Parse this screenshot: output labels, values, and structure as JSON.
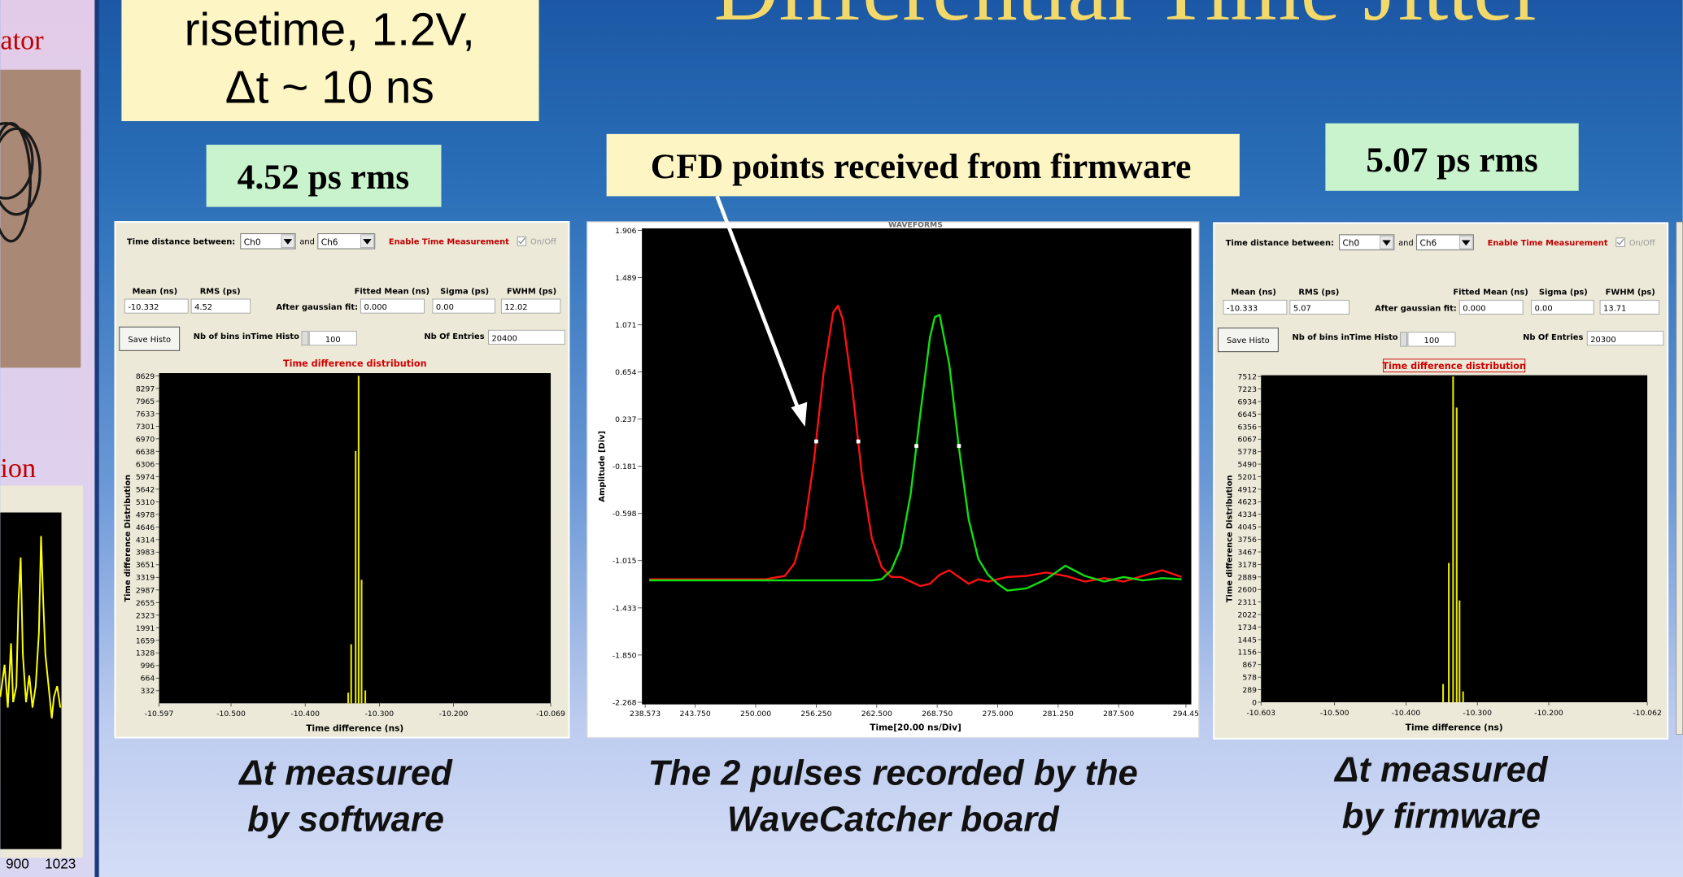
{
  "slide": {
    "title": "Differential Time Jitter",
    "top_box": [
      "risetime, 1.2V,",
      "Δt ~ 10 ns"
    ],
    "left_fragment": {
      "label_top": "ator",
      "label_mid": "ion",
      "xticks": [
        900,
        1023
      ]
    },
    "rms_left": "4.52 ps rms",
    "rms_right": "5.07 ps rms",
    "callout": "CFD points received from firmware",
    "captions": [
      [
        "Δt measured",
        "by software"
      ],
      [
        "The 2 pulses recorded by the",
        "WaveCatcher board"
      ],
      [
        "Δt measured",
        "by firmware"
      ]
    ]
  },
  "panels": [
    {
      "selector_label": "Time distance between:",
      "ch_a": "Ch0",
      "and": "and",
      "ch_b": "Ch6",
      "enable": "Enable Time Measurement",
      "onoff": "On/Off",
      "headers": [
        "Mean (ns)",
        "RMS (ps)",
        "Fitted Mean (ns)",
        "Sigma (ps)",
        "FWHM (ps)"
      ],
      "fit_label": "After gaussian fit:",
      "fields": [
        -10.332,
        4.52,
        "0.000",
        "0.00",
        12.02
      ],
      "save": "Save Histo",
      "bins_label": "Nb of bins inTime Histo",
      "bins": 100,
      "entries_label": "Nb Of Entries",
      "entries": 20400,
      "histogram": {
        "title": "Time difference distribution",
        "ylabel": "Time difference Distribution",
        "xlabel": "Time difference (ns)",
        "xlim": [
          -10.597,
          -10.069
        ],
        "ylim": [
          0,
          8700
        ],
        "xticks": [
          -10.597,
          {
            "value": -10.5,
            "label": "-10.500"
          },
          {
            "value": -10.4,
            "label": "-10.400"
          },
          {
            "value": -10.3,
            "label": "-10.300"
          },
          {
            "value": -10.2,
            "label": "-10.200"
          },
          -10.069
        ],
        "yticks": [
          332,
          664,
          996,
          1328,
          1659,
          1991,
          2323,
          2655,
          2987,
          3319,
          3651,
          3983,
          4314,
          4646,
          4978,
          5310,
          5642,
          5974,
          6306,
          6638,
          6970,
          7301,
          7633,
          7965,
          8297,
          8629
        ],
        "x": [
          -10.342,
          -10.338,
          -10.332,
          -10.328,
          -10.324,
          -10.319
        ],
        "values": [
          280,
          1556,
          6649,
          8629,
          3254,
          340
        ]
      }
    },
    {
      "selector_label": "Time distance between:",
      "ch_a": "Ch0",
      "and": "and",
      "ch_b": "Ch6",
      "enable": "Enable Time Measurement",
      "onoff": "On/Off",
      "headers": [
        "Mean (ns)",
        "RMS (ps)",
        "Fitted Mean (ns)",
        "Sigma (ps)",
        "FWHM (ps)"
      ],
      "fit_label": "After gaussian fit:",
      "fields": [
        -10.333,
        5.07,
        "0.000",
        "0.00",
        13.71
      ],
      "save": "Save Histo",
      "bins_label": "Nb of bins inTime Histo",
      "bins": 100,
      "entries_label": "Nb Of Entries",
      "entries": 20300,
      "histogram": {
        "title": "Time difference distribution",
        "ylabel": "Time difference Distribution",
        "xlabel": "Time difference (ns)",
        "xlim": [
          -10.603,
          -10.062
        ],
        "ylim": [
          0,
          7540
        ],
        "xticks": [
          -10.603,
          {
            "value": -10.5,
            "label": "-10.500"
          },
          {
            "value": -10.4,
            "label": "-10.400"
          },
          {
            "value": -10.3,
            "label": "-10.300"
          },
          {
            "value": -10.2,
            "label": "-10.200"
          },
          -10.062
        ],
        "yticks": [
          0,
          289,
          578,
          867,
          1156,
          1445,
          1734,
          2022,
          2311,
          2600,
          2889,
          3178,
          3467,
          3756,
          4045,
          4334,
          4623,
          4912,
          5201,
          5490,
          5778,
          6067,
          6356,
          6645,
          6934,
          7223,
          7512
        ],
        "x": [
          -10.348,
          -10.34,
          -10.334,
          -10.329,
          -10.325,
          -10.32
        ],
        "values": [
          420,
          3212,
          7512,
          6795,
          2347,
          250
        ]
      }
    }
  ],
  "waveform": {
    "title": "WAVEFORMS",
    "ylabel": "Amplitude [Div]",
    "xlabel": "Time[20.00 ns/Div]",
    "xlim": [
      238.573,
      294.45
    ],
    "ylim": [
      -2.268,
      1.906
    ],
    "yticks": [
      1.906,
      1.489,
      1.071,
      0.654,
      0.237,
      -0.181,
      -0.598,
      -1.015,
      -1.433,
      {
        "value": -1.85,
        "label": "-1.850"
      },
      -2.268
    ],
    "xticks": [
      238.573,
      {
        "value": 243.75,
        "label": "243.750"
      },
      {
        "value": 250,
        "label": "250.000"
      },
      {
        "value": 256.25,
        "label": "256.250"
      },
      {
        "value": 262.5,
        "label": "262.500"
      },
      {
        "value": 268.75,
        "label": "268.750"
      },
      {
        "value": 275,
        "label": "275.000"
      },
      {
        "value": 281.25,
        "label": "281.250"
      },
      {
        "value": 287.5,
        "label": "287.500"
      },
      294.45
    ],
    "x": [
      239,
      242,
      245,
      248,
      251,
      253,
      254,
      255,
      256,
      257,
      258,
      258.5,
      259,
      260,
      261,
      262,
      263,
      264,
      265,
      266,
      267,
      268,
      268.5,
      269,
      270,
      271,
      272,
      273,
      274,
      275,
      276,
      278,
      280,
      282,
      284,
      286,
      288,
      290,
      292,
      294
    ],
    "series": [
      {
        "color": "#ff1010",
        "values": [
          -1.18,
          -1.18,
          -1.18,
          -1.18,
          -1.18,
          -1.15,
          -1.04,
          -0.73,
          -0.14,
          0.64,
          1.18,
          1.24,
          1.12,
          0.49,
          -0.28,
          -0.82,
          -1.07,
          -1.16,
          -1.16,
          -1.2,
          -1.24,
          -1.22,
          -1.18,
          -1.14,
          -1.1,
          -1.16,
          -1.22,
          -1.18,
          -1.2,
          -1.18,
          -1.16,
          -1.15,
          -1.12,
          -1.15,
          -1.2,
          -1.17,
          -1.2,
          -1.15,
          -1.1,
          -1.16
        ]
      },
      {
        "color": "#10e010",
        "values": [
          -1.19,
          -1.19,
          -1.19,
          -1.19,
          -1.19,
          -1.19,
          -1.19,
          -1.19,
          -1.19,
          -1.19,
          -1.19,
          -1.19,
          -1.19,
          -1.19,
          -1.19,
          -1.19,
          -1.18,
          -1.1,
          -0.9,
          -0.43,
          0.28,
          0.96,
          1.14,
          1.16,
          0.72,
          -0.02,
          -0.65,
          -1.0,
          -1.14,
          -1.22,
          -1.28,
          -1.26,
          -1.18,
          -1.06,
          -1.15,
          -1.2,
          -1.16,
          -1.19,
          -1.17,
          -1.18
        ]
      }
    ],
    "cfd_points": {
      "x": [
        256.25,
        260.6,
        266.6,
        271.0
      ],
      "values": [
        0.04,
        0.04,
        0.0,
        0.0
      ]
    }
  }
}
